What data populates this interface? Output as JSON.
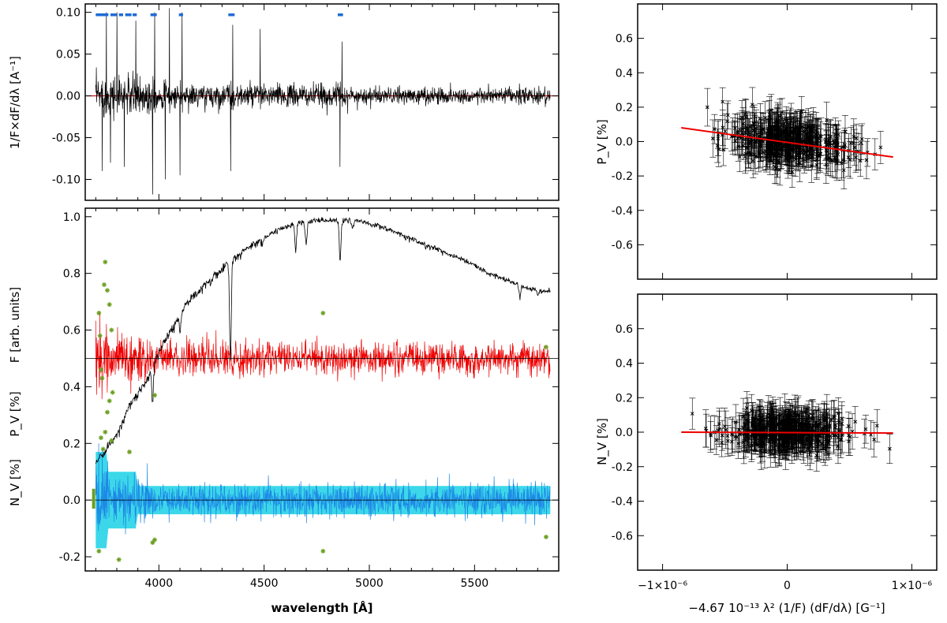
{
  "chart_data": [
    {
      "id": "derivative",
      "type": "line",
      "ylabel": "1/F×dF/dλ [A⁻¹]",
      "ylim": [
        -0.125,
        0.11
      ],
      "xlim": [
        3650,
        5900
      ],
      "yticks": [
        "0.10",
        "0.05",
        "0.00",
        "-0.05",
        "-0.10"
      ],
      "ytick_values": [
        0.1,
        0.05,
        0.0,
        -0.05,
        -0.1
      ],
      "selected_line_regions": [
        [
          3700,
          3760
        ],
        [
          3770,
          3800
        ],
        [
          3810,
          3830
        ],
        [
          3840,
          3870
        ],
        [
          3875,
          3895
        ],
        [
          3960,
          3990
        ],
        [
          4095,
          4115
        ],
        [
          4330,
          4360
        ],
        [
          4850,
          4875
        ]
      ],
      "selected_region_color": "#1e6bd6",
      "deep_features": [
        [
          3730,
          -0.09
        ],
        [
          3750,
          0.1
        ],
        [
          3770,
          -0.08
        ],
        [
          3800,
          0.1
        ],
        [
          3835,
          -0.085
        ],
        [
          3890,
          0.09
        ],
        [
          3970,
          -0.118
        ],
        [
          3980,
          0.1
        ],
        [
          4030,
          -0.1
        ],
        [
          4050,
          0.105
        ],
        [
          4100,
          -0.095
        ],
        [
          4110,
          0.1
        ],
        [
          4340,
          -0.09
        ],
        [
          4350,
          0.085
        ],
        [
          4480,
          0.08
        ],
        [
          4860,
          -0.085
        ],
        [
          4870,
          0.065
        ]
      ],
      "series": [
        {
          "values_desc": "derivative",
          "color": "#000000"
        },
        {
          "line_y": 0.0,
          "color": "#cc0000"
        }
      ]
    },
    {
      "id": "spectrum",
      "type": "line",
      "xlabel": "wavelength [Å]",
      "ylabels": [
        "N_V [%]",
        "P_V [%]",
        "F [arb. units]"
      ],
      "xlim": [
        3650,
        5900
      ],
      "ylim": [
        -0.25,
        1.03
      ],
      "xticks": [
        "4000",
        "4500",
        "5000",
        "5500"
      ],
      "xtick_values": [
        4000,
        4500,
        5000,
        5500
      ],
      "yticks": [
        "1.0",
        "0.8",
        "0.6",
        "0.4",
        "0.2",
        "0.0",
        "-0.2"
      ],
      "ytick_values": [
        1.0,
        0.8,
        0.6,
        0.4,
        0.2,
        0.0,
        -0.2
      ],
      "flux_points": [
        [
          3700,
          0.14
        ],
        [
          3760,
          0.2
        ],
        [
          3800,
          0.24
        ],
        [
          3860,
          0.34
        ],
        [
          3950,
          0.44
        ],
        [
          4000,
          0.53
        ],
        [
          4050,
          0.6
        ],
        [
          4150,
          0.72
        ],
        [
          4250,
          0.79
        ],
        [
          4350,
          0.86
        ],
        [
          4450,
          0.91
        ],
        [
          4550,
          0.95
        ],
        [
          4650,
          0.98
        ],
        [
          4750,
          0.99
        ],
        [
          4850,
          0.99
        ],
        [
          4950,
          0.99
        ],
        [
          5050,
          0.97
        ],
        [
          5150,
          0.94
        ],
        [
          5250,
          0.91
        ],
        [
          5350,
          0.88
        ],
        [
          5450,
          0.85
        ],
        [
          5550,
          0.81
        ],
        [
          5650,
          0.78
        ],
        [
          5750,
          0.75
        ],
        [
          5860,
          0.74
        ]
      ],
      "flux_absorption_lines": [
        [
          3970,
          0.36
        ],
        [
          4101,
          0.6
        ],
        [
          4340,
          0.5
        ],
        [
          4650,
          0.88
        ],
        [
          4700,
          0.9
        ],
        [
          4861,
          0.85
        ],
        [
          4920,
          0.96
        ],
        [
          5015,
          0.97
        ],
        [
          5170,
          0.93
        ],
        [
          5270,
          0.9
        ],
        [
          5715,
          0.72
        ],
        [
          5800,
          0.73
        ]
      ],
      "stokes_v_offset": 0.5,
      "null_offset": 0.0,
      "stokes_v_outliers": [
        [
          3715,
          0.66
        ],
        [
          3720,
          0.58
        ],
        [
          3725,
          0.46
        ],
        [
          3730,
          0.43
        ],
        [
          3740,
          0.76
        ],
        [
          3745,
          0.84
        ],
        [
          3755,
          0.74
        ],
        [
          3765,
          0.69
        ],
        [
          3775,
          0.6
        ],
        [
          3780,
          0.38
        ],
        [
          3980,
          0.37
        ],
        [
          4780,
          0.66
        ],
        [
          5840,
          0.54
        ]
      ],
      "null_outliers": [
        [
          3715,
          -0.18
        ],
        [
          3725,
          0.22
        ],
        [
          3735,
          0.18
        ],
        [
          3745,
          0.24
        ],
        [
          3755,
          0.31
        ],
        [
          3765,
          0.35
        ],
        [
          3775,
          0.21
        ],
        [
          3810,
          -0.21
        ],
        [
          3860,
          0.17
        ],
        [
          3970,
          -0.15
        ],
        [
          3980,
          -0.14
        ],
        [
          4780,
          -0.18
        ],
        [
          5840,
          -0.13
        ]
      ],
      "series": [
        {
          "name_desc": "F",
          "color": "#000000"
        },
        {
          "name_desc": "P_V",
          "color": "#ee0000"
        },
        {
          "name_desc": "N_V",
          "color": "#1e88e5"
        },
        {
          "name_desc": "N_V error band",
          "color": "#27d4e8"
        },
        {
          "name_desc": "outliers",
          "color": "#6b9e1f"
        }
      ]
    },
    {
      "id": "pv-vs-derivative",
      "type": "scatter",
      "ylabel": "P_V [%]",
      "xlim": [
        -1.2e-06,
        1.2e-06
      ],
      "ylim": [
        -0.8,
        0.8
      ],
      "yticks": [
        "0.6",
        "0.4",
        "0.2",
        "0.0",
        "-0.2",
        "-0.4",
        "-0.6"
      ],
      "ytick_values": [
        0.6,
        0.4,
        0.2,
        0.0,
        -0.2,
        -0.4,
        -0.6
      ],
      "fit_line": {
        "x": [
          -8.5e-07,
          8.5e-07
        ],
        "y": [
          0.08,
          -0.09
        ],
        "color": "#ee0000"
      },
      "cloud": {
        "x_spread": 2.5e-07,
        "y_spread": 0.06,
        "slope_pct_per_unit": -100000,
        "count": 450,
        "errorbar": 0.08
      },
      "color": "#000000"
    },
    {
      "id": "nv-vs-derivative",
      "type": "scatter",
      "ylabel": "N_V [%]",
      "xlabel": "−4.67 10⁻¹³ λ² (1/F) (dF/dλ) [G⁻¹]",
      "xlim": [
        -1.2e-06,
        1.2e-06
      ],
      "ylim": [
        -0.8,
        0.8
      ],
      "xticks": [
        "−1×10⁻⁶",
        "0",
        "1×10⁻⁶"
      ],
      "xtick_values": [
        -1e-06,
        0,
        1e-06
      ],
      "yticks": [
        "0.6",
        "0.4",
        "0.2",
        "0.0",
        "-0.2",
        "-0.4",
        "-0.6"
      ],
      "ytick_values": [
        0.6,
        0.4,
        0.2,
        0.0,
        -0.2,
        -0.4,
        -0.6
      ],
      "fit_line": {
        "x": [
          -8.5e-07,
          8.5e-07
        ],
        "y": [
          0.0,
          -0.005
        ],
        "color": "#ee0000"
      },
      "cloud": {
        "x_spread": 2.5e-07,
        "y_spread": 0.05,
        "slope_pct_per_unit": 0,
        "count": 450,
        "errorbar": 0.08
      },
      "color": "#000000"
    }
  ]
}
